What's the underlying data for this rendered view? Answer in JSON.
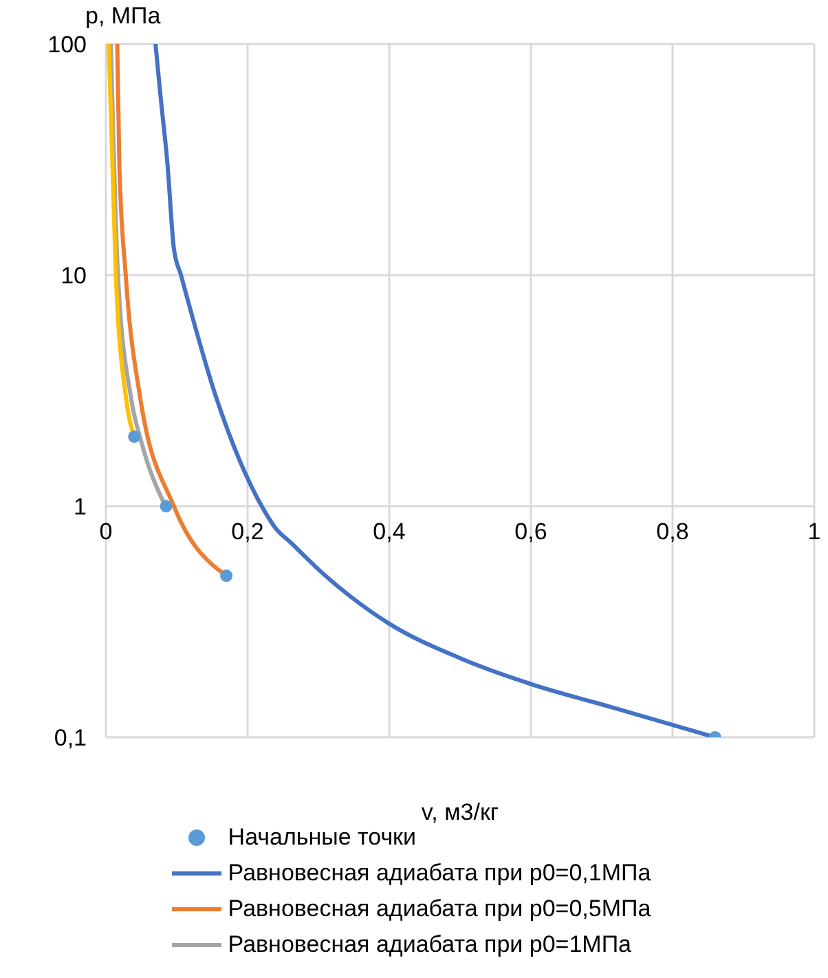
{
  "chart_data": {
    "type": "line",
    "xlabel": "v, м3/кг",
    "ylabel": "p, МПа",
    "log": "y",
    "xlim": [
      0,
      1
    ],
    "ylim": [
      0.1,
      100
    ],
    "xticks": [
      0,
      {
        "value": 0.2,
        "label": "0,2"
      },
      {
        "value": 0.4,
        "label": "0,4"
      },
      {
        "value": 0.6,
        "label": "0,6"
      },
      {
        "value": 0.8,
        "label": "0,8"
      },
      1
    ],
    "yticks": [
      {
        "value": 0.1,
        "label": "0,1"
      },
      1,
      10,
      100
    ],
    "grid": true,
    "legend": "bottom",
    "series": [
      {
        "name": "Начальные точки",
        "type": "scatter",
        "marker": "circle",
        "color": "#5b9bd5",
        "x": [
          0.04,
          0.085,
          0.17,
          0.86
        ],
        "values": [
          2,
          1,
          0.5,
          0.1
        ]
      },
      {
        "name": "Равновесная адиабата при p0=0,1МПа",
        "color": "#4472c4",
        "marker": "none",
        "x": [
          0.07,
          0.077,
          0.087,
          0.096,
          0.106,
          0.155,
          0.22,
          0.24,
          0.26,
          0.31,
          0.4,
          0.5,
          0.6,
          0.71,
          0.86
        ],
        "values": [
          100,
          60,
          30,
          13,
          10,
          3,
          1,
          0.8,
          0.7,
          0.5,
          0.31,
          0.22,
          0.17,
          0.136,
          0.1
        ]
      },
      {
        "name": "Равновесная адиабата при p0=0,5МПа",
        "color": "#ed7d31",
        "marker": "none",
        "x": [
          0.016,
          0.019,
          0.028,
          0.048,
          0.096,
          0.17
        ],
        "values": [
          100,
          30,
          10,
          3,
          1,
          0.5
        ]
      },
      {
        "name": "Равновесная адиабата при p0=1МПа",
        "color": "#a5a5a5",
        "marker": "none",
        "x": [
          0.007,
          0.017,
          0.035,
          0.05,
          0.084
        ],
        "values": [
          100,
          10,
          3,
          1.9,
          1
        ]
      },
      {
        "color": "#ffc000",
        "marker": "none",
        "x": [
          0.004,
          0.014,
          0.028,
          0.04
        ],
        "values": [
          100,
          10,
          3,
          2
        ]
      }
    ]
  }
}
